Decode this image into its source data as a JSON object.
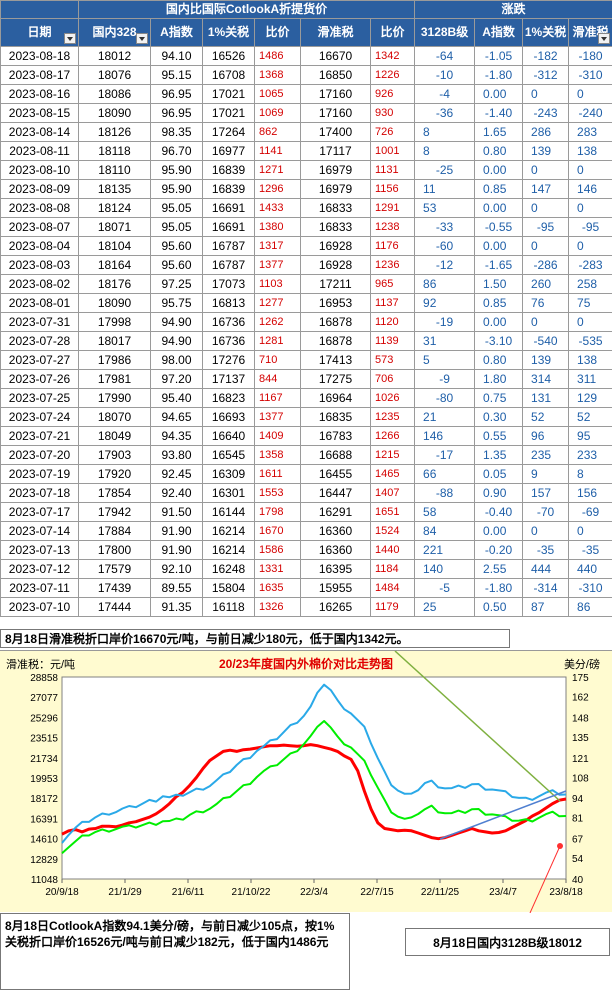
{
  "header": {
    "group_domestic_vs_intl": "国内比国际CotlookA折提货价",
    "group_change": "涨跌",
    "columns": [
      "日期",
      "国内328",
      "A指数",
      "1%关税",
      "比价",
      "滑准税",
      "比价",
      "3128B级",
      "A指数",
      "1%关税",
      "滑准税"
    ]
  },
  "rows": [
    [
      "2023-08-18",
      "18012",
      "94.10",
      "16526",
      "1486",
      "16670",
      "1342",
      "-64",
      "-1.05",
      "-182",
      "-180"
    ],
    [
      "2023-08-17",
      "18076",
      "95.15",
      "16708",
      "1368",
      "16850",
      "1226",
      "-10",
      "-1.80",
      "-312",
      "-310"
    ],
    [
      "2023-08-16",
      "18086",
      "96.95",
      "17021",
      "1065",
      "17160",
      "926",
      "-4",
      "0.00",
      "0",
      "0"
    ],
    [
      "2023-08-15",
      "18090",
      "96.95",
      "17021",
      "1069",
      "17160",
      "930",
      "-36",
      "-1.40",
      "-243",
      "-240"
    ],
    [
      "2023-08-14",
      "18126",
      "98.35",
      "17264",
      "862",
      "17400",
      "726",
      "8",
      "1.65",
      "286",
      "283"
    ],
    [
      "2023-08-11",
      "18118",
      "96.70",
      "16977",
      "1141",
      "17117",
      "1001",
      "8",
      "0.80",
      "139",
      "138"
    ],
    [
      "2023-08-10",
      "18110",
      "95.90",
      "16839",
      "1271",
      "16979",
      "1131",
      "-25",
      "0.00",
      "0",
      "0"
    ],
    [
      "2023-08-09",
      "18135",
      "95.90",
      "16839",
      "1296",
      "16979",
      "1156",
      "11",
      "0.85",
      "147",
      "146"
    ],
    [
      "2023-08-08",
      "18124",
      "95.05",
      "16691",
      "1433",
      "16833",
      "1291",
      "53",
      "0.00",
      "0",
      "0"
    ],
    [
      "2023-08-07",
      "18071",
      "95.05",
      "16691",
      "1380",
      "16833",
      "1238",
      "-33",
      "-0.55",
      "-95",
      "-95"
    ],
    [
      "2023-08-04",
      "18104",
      "95.60",
      "16787",
      "1317",
      "16928",
      "1176",
      "-60",
      "0.00",
      "0",
      "0"
    ],
    [
      "2023-08-03",
      "18164",
      "95.60",
      "16787",
      "1377",
      "16928",
      "1236",
      "-12",
      "-1.65",
      "-286",
      "-283"
    ],
    [
      "2023-08-02",
      "18176",
      "97.25",
      "17073",
      "1103",
      "17211",
      "965",
      "86",
      "1.50",
      "260",
      "258"
    ],
    [
      "2023-08-01",
      "18090",
      "95.75",
      "16813",
      "1277",
      "16953",
      "1137",
      "92",
      "0.85",
      "76",
      "75"
    ],
    [
      "2023-07-31",
      "17998",
      "94.90",
      "16736",
      "1262",
      "16878",
      "1120",
      "-19",
      "0.00",
      "0",
      "0"
    ],
    [
      "2023-07-28",
      "18017",
      "94.90",
      "16736",
      "1281",
      "16878",
      "1139",
      "31",
      "-3.10",
      "-540",
      "-535"
    ],
    [
      "2023-07-27",
      "17986",
      "98.00",
      "17276",
      "710",
      "17413",
      "573",
      "5",
      "0.80",
      "139",
      "138"
    ],
    [
      "2023-07-26",
      "17981",
      "97.20",
      "17137",
      "844",
      "17275",
      "706",
      "-9",
      "1.80",
      "314",
      "311"
    ],
    [
      "2023-07-25",
      "17990",
      "95.40",
      "16823",
      "1167",
      "16964",
      "1026",
      "-80",
      "0.75",
      "131",
      "129"
    ],
    [
      "2023-07-24",
      "18070",
      "94.65",
      "16693",
      "1377",
      "16835",
      "1235",
      "21",
      "0.30",
      "52",
      "52"
    ],
    [
      "2023-07-21",
      "18049",
      "94.35",
      "16640",
      "1409",
      "16783",
      "1266",
      "146",
      "0.55",
      "96",
      "95"
    ],
    [
      "2023-07-20",
      "17903",
      "93.80",
      "16545",
      "1358",
      "16688",
      "1215",
      "-17",
      "1.35",
      "235",
      "233"
    ],
    [
      "2023-07-19",
      "17920",
      "92.45",
      "16309",
      "1611",
      "16455",
      "1465",
      "66",
      "0.05",
      "9",
      "8"
    ],
    [
      "2023-07-18",
      "17854",
      "92.40",
      "16301",
      "1553",
      "16447",
      "1407",
      "-88",
      "0.90",
      "157",
      "156"
    ],
    [
      "2023-07-17",
      "17942",
      "91.50",
      "16144",
      "1798",
      "16291",
      "1651",
      "58",
      "-0.40",
      "-70",
      "-69"
    ],
    [
      "2023-07-14",
      "17884",
      "91.90",
      "16214",
      "1670",
      "16360",
      "1524",
      "84",
      "0.00",
      "0",
      "0"
    ],
    [
      "2023-07-13",
      "17800",
      "91.90",
      "16214",
      "1586",
      "16360",
      "1440",
      "221",
      "-0.20",
      "-35",
      "-35"
    ],
    [
      "2023-07-12",
      "17579",
      "92.10",
      "16248",
      "1331",
      "16395",
      "1184",
      "140",
      "2.55",
      "444",
      "440"
    ],
    [
      "2023-07-11",
      "17439",
      "89.55",
      "15804",
      "1635",
      "15955",
      "1484",
      "-5",
      "-1.80",
      "-314",
      "-310"
    ],
    [
      "2023-07-10",
      "17444",
      "91.35",
      "16118",
      "1326",
      "16265",
      "1179",
      "25",
      "0.50",
      "87",
      "86"
    ]
  ],
  "notes": {
    "top": "8月18日滑准税折口岸价16670元/吨，与前日减少180元，低于国内1342元。",
    "bottom_left": "8月18日CotlookA指数94.1美分/磅，与前日减少105点，按1%关税折口岸价16526元/吨与前日减少182元，低于国内1486元",
    "bottom_right": "8月18日国内3128B级18012"
  },
  "colors": {
    "header_bg": "#2b5fa0",
    "ratio_text": "#d40000",
    "change_text": "#1f5fa8",
    "chart_bg": "#fffbd0",
    "plot_bg": "#ffffff",
    "series_domestic": "#ff0000",
    "series_1pct": "#2aa9e8",
    "series_sliding": "#00ee00",
    "annotation_green": "#7fb040",
    "annotation_blue": "#4f7fd0"
  },
  "chart_data": {
    "type": "line",
    "title": "20/23年度国内外棉价对比走势图",
    "ylabel_left": "滑准税：元/吨",
    "ylabel_right": "美分/磅",
    "x_ticks": [
      "20/9/18",
      "21/1/29",
      "21/6/11",
      "21/10/22",
      "22/3/4",
      "22/7/15",
      "22/11/25",
      "23/4/7",
      "23/8/18"
    ],
    "y_left_ticks": [
      11048,
      12829,
      14610,
      16391,
      18172,
      19953,
      21734,
      23515,
      25296,
      27077,
      28858
    ],
    "y_right_ticks": [
      40,
      54,
      67,
      81,
      94,
      108,
      121,
      135,
      148,
      162,
      175
    ],
    "ylim_left": [
      11048,
      28858
    ],
    "ylim_right": [
      40,
      175
    ],
    "series": [
      {
        "color": "#ff0000",
        "values": [
          15000,
          15300,
          15400,
          15200,
          15450,
          15500,
          15700,
          15700,
          15650,
          15800,
          16000,
          16100,
          16300,
          16500,
          16800,
          17200,
          17700,
          18300,
          18700,
          19300,
          20000,
          20800,
          21500,
          21900,
          22300,
          22400,
          22300,
          22450,
          22500,
          22600,
          22700,
          22800,
          22800,
          22850,
          22800,
          22750,
          22800,
          22900,
          22800,
          22650,
          22500,
          22300,
          21900,
          21600,
          20600,
          18800,
          17200,
          16000,
          15500,
          15400,
          15300,
          15350,
          15300,
          15100,
          14900,
          14700,
          14600,
          14700,
          14900,
          15100,
          15300,
          15500,
          15300,
          15200,
          15100,
          15150,
          15300,
          15600,
          15900,
          16200,
          16600,
          16900,
          17300,
          17700,
          18000,
          18100
        ]
      },
      {
        "color": "#2aa9e8",
        "values": [
          14400,
          15000,
          15500,
          15900,
          16200,
          16500,
          16700,
          16900,
          17000,
          17200,
          17300,
          17500,
          17700,
          17900,
          18050,
          18400,
          18200,
          18300,
          18500,
          18700,
          18900,
          19100,
          19300,
          19700,
          20100,
          20600,
          21100,
          21500,
          21900,
          22400,
          22700,
          23100,
          23500,
          24000,
          24500,
          25000,
          25500,
          26200,
          27300,
          28300,
          27700,
          26700,
          26200,
          25700,
          25000,
          24300,
          23100,
          21700,
          20400,
          19500,
          18900,
          18500,
          18400,
          19000,
          19500,
          19600,
          19300,
          19100,
          19000,
          19100,
          19200,
          19400,
          19300,
          19100,
          19000,
          18800,
          18600,
          18400,
          18200,
          18100,
          18200,
          18400,
          18600,
          18700,
          18600,
          18500
        ]
      },
      {
        "color": "#00ee00",
        "values": [
          13500,
          13900,
          14300,
          14700,
          15000,
          15200,
          15300,
          15400,
          15500,
          15600,
          15600,
          15700,
          15800,
          15900,
          16000,
          16200,
          16100,
          16200,
          16400,
          16700,
          16900,
          17100,
          17300,
          17600,
          18000,
          18400,
          18800,
          19200,
          19600,
          20100,
          20500,
          20800,
          21200,
          21600,
          22000,
          22500,
          23000,
          23600,
          24300,
          25100,
          24400,
          23500,
          23100,
          22700,
          22000,
          21300,
          20300,
          19100,
          17900,
          17100,
          16600,
          16300,
          16300,
          16900,
          17200,
          17400,
          17100,
          16900,
          16800,
          16900,
          17000,
          17200,
          17100,
          16900,
          16800,
          16600,
          16400,
          16300,
          16200,
          16200,
          16300,
          16500,
          16700,
          16800,
          16700,
          16600
        ]
      }
    ]
  }
}
